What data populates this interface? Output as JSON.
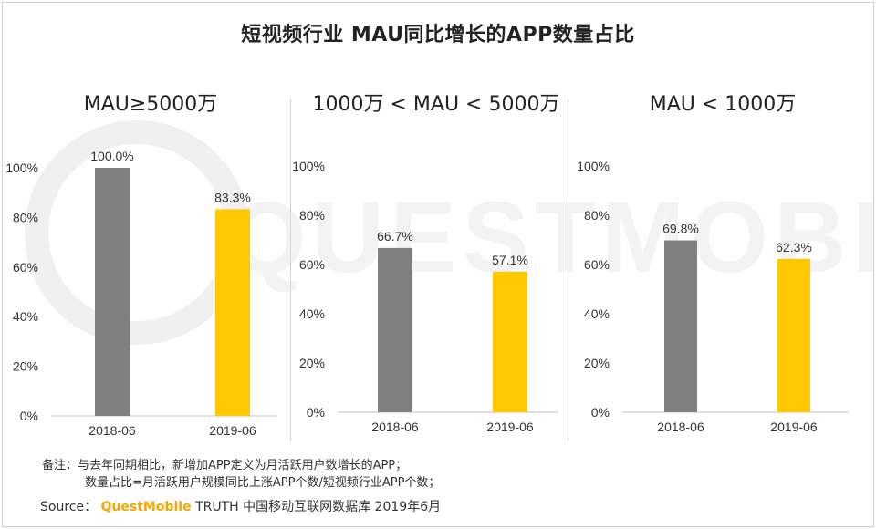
{
  "title": "短视频行业 MAU同比增长的APP数量占比",
  "colors": {
    "bar_2018": "#808080",
    "bar_2019": "#ffc800",
    "brand": "#f5a800"
  },
  "watermark_text": "QUESTMOBILE",
  "chart_data": [
    {
      "type": "bar",
      "title": "MAU≥5000万",
      "categories": [
        "2018-06",
        "2019-06"
      ],
      "values": [
        100.0,
        83.3
      ],
      "value_labels": [
        "100.0%",
        "83.3%"
      ],
      "ylim": [
        0,
        100
      ],
      "yticks": [
        "0%",
        "20%",
        "40%",
        "60%",
        "80%",
        "100%"
      ],
      "grid": false
    },
    {
      "type": "bar",
      "title": "1000万 < MAU < 5000万",
      "categories": [
        "2018-06",
        "2019-06"
      ],
      "values": [
        66.7,
        57.1
      ],
      "value_labels": [
        "66.7%",
        "57.1%"
      ],
      "ylim": [
        0,
        100
      ],
      "yticks": [
        "0%",
        "20%",
        "40%",
        "60%",
        "80%",
        "100%"
      ],
      "grid": false
    },
    {
      "type": "bar",
      "title": "MAU < 1000万",
      "categories": [
        "2018-06",
        "2019-06"
      ],
      "values": [
        69.8,
        62.3
      ],
      "value_labels": [
        "69.8%",
        "62.3%"
      ],
      "ylim": [
        0,
        100
      ],
      "yticks": [
        "0%",
        "20%",
        "40%",
        "60%",
        "80%",
        "100%"
      ],
      "grid": false
    }
  ],
  "notes": {
    "line1": "备注：与去年同期相比，新增加APP定义为月活跃用户数增长的APP；",
    "line2": "数量占比=月活跃用户规模同比上涨APP个数/短视频行业APP个数；"
  },
  "source": {
    "prefix": "Source：",
    "brand": "QuestMobile",
    "text": "TRUTH 中国移动互联网数据库 2019年6月"
  }
}
